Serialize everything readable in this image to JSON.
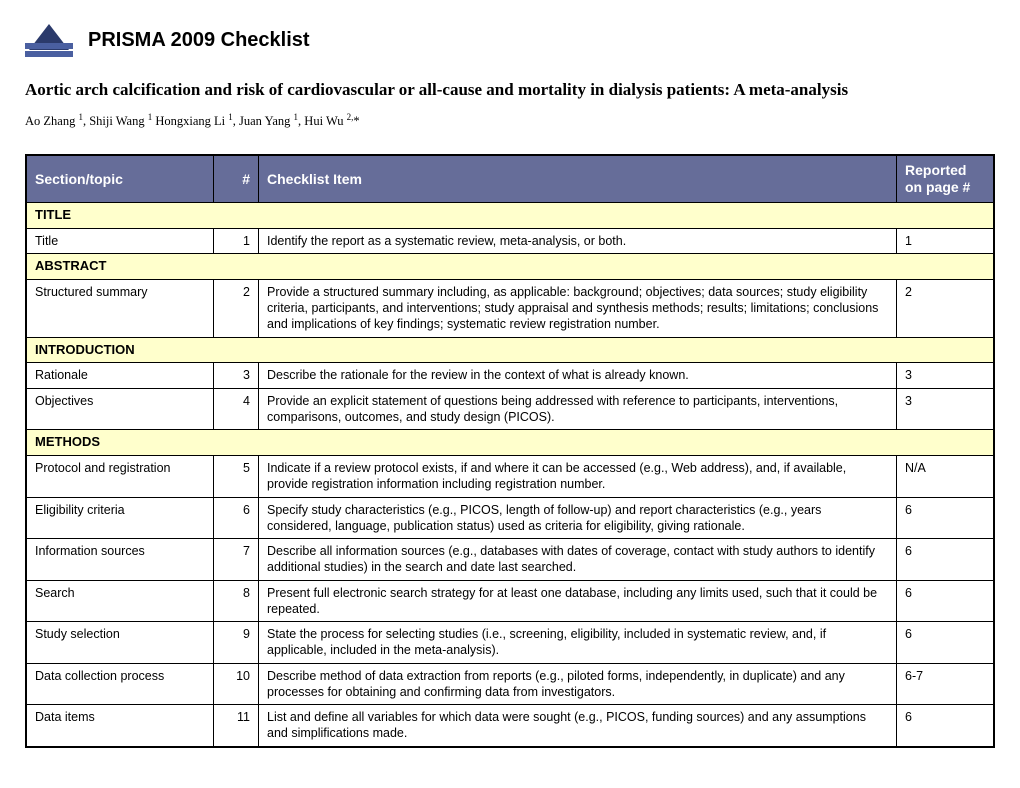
{
  "header": {
    "title": "PRISMA 2009 Checklist"
  },
  "subtitle": "Aortic arch calcification and risk of cardiovascular or all-cause and mortality in dialysis patients: A meta-analysis",
  "authors_html": "Ao Zhang <sup>1</sup>, Shiji Wang <sup>1</sup> Hongxiang Li <sup>1</sup>, Juan Yang <sup>1</sup>, Hui Wu <sup>2,</sup>*",
  "table": {
    "header_bg": "#666d99",
    "section_bg": "#ffffcc",
    "columns": {
      "section": "Section/topic",
      "num": "#",
      "item": "Checklist Item",
      "page": "Reported on page #"
    },
    "rows": [
      {
        "type": "section",
        "label": "TITLE"
      },
      {
        "type": "item",
        "section": "Title",
        "num": "1",
        "item": "Identify the report as a systematic review, meta-analysis, or both.",
        "page": "1"
      },
      {
        "type": "section",
        "label": "ABSTRACT"
      },
      {
        "type": "item",
        "section": "Structured summary",
        "num": "2",
        "item": "Provide a structured summary including, as applicable: background; objectives; data sources; study eligibility criteria, participants, and interventions; study appraisal and synthesis methods; results; limitations; conclusions and implications of key findings; systematic review registration number.",
        "page": "2"
      },
      {
        "type": "section",
        "label": "INTRODUCTION"
      },
      {
        "type": "item",
        "section": "Rationale",
        "num": "3",
        "item": "Describe the rationale for the review in the context of what is already known.",
        "page": "3"
      },
      {
        "type": "item",
        "section": "Objectives",
        "num": "4",
        "item": "Provide an explicit statement of questions being addressed with reference to participants, interventions, comparisons, outcomes, and study design (PICOS).",
        "page": "3"
      },
      {
        "type": "section",
        "label": "METHODS"
      },
      {
        "type": "item",
        "section": "Protocol and registration",
        "num": "5",
        "item": "Indicate if a review protocol exists, if and where it can be accessed (e.g., Web address), and, if available, provide registration information including registration number.",
        "page": "N/A"
      },
      {
        "type": "item",
        "section": "Eligibility criteria",
        "num": "6",
        "item": "Specify study characteristics (e.g., PICOS, length of follow-up) and report characteristics (e.g., years considered, language, publication status) used as criteria for eligibility, giving rationale.",
        "page": "6"
      },
      {
        "type": "item",
        "section": "Information sources",
        "num": "7",
        "item": "Describe all information sources (e.g., databases with dates of coverage, contact with study authors to identify additional studies) in the search and date last searched.",
        "page": "6"
      },
      {
        "type": "item",
        "section": "Search",
        "num": "8",
        "item": "Present full electronic search strategy for at least one database, including any limits used, such that it could be repeated.",
        "page": "6"
      },
      {
        "type": "item",
        "section": "Study selection",
        "num": "9",
        "item": "State the process for selecting studies (i.e., screening, eligibility, included in systematic review, and, if applicable, included in the meta-analysis).",
        "page": "6"
      },
      {
        "type": "item",
        "section": "Data collection process",
        "num": "10",
        "item": "Describe method of data extraction from reports (e.g., piloted forms, independently, in duplicate) and any processes for obtaining and confirming data from investigators.",
        "page": "6-7"
      },
      {
        "type": "item",
        "section": "Data items",
        "num": "11",
        "item": "List and define all variables for which data were sought (e.g., PICOS, funding sources) and any assumptions and simplifications made.",
        "page": "6"
      }
    ]
  }
}
